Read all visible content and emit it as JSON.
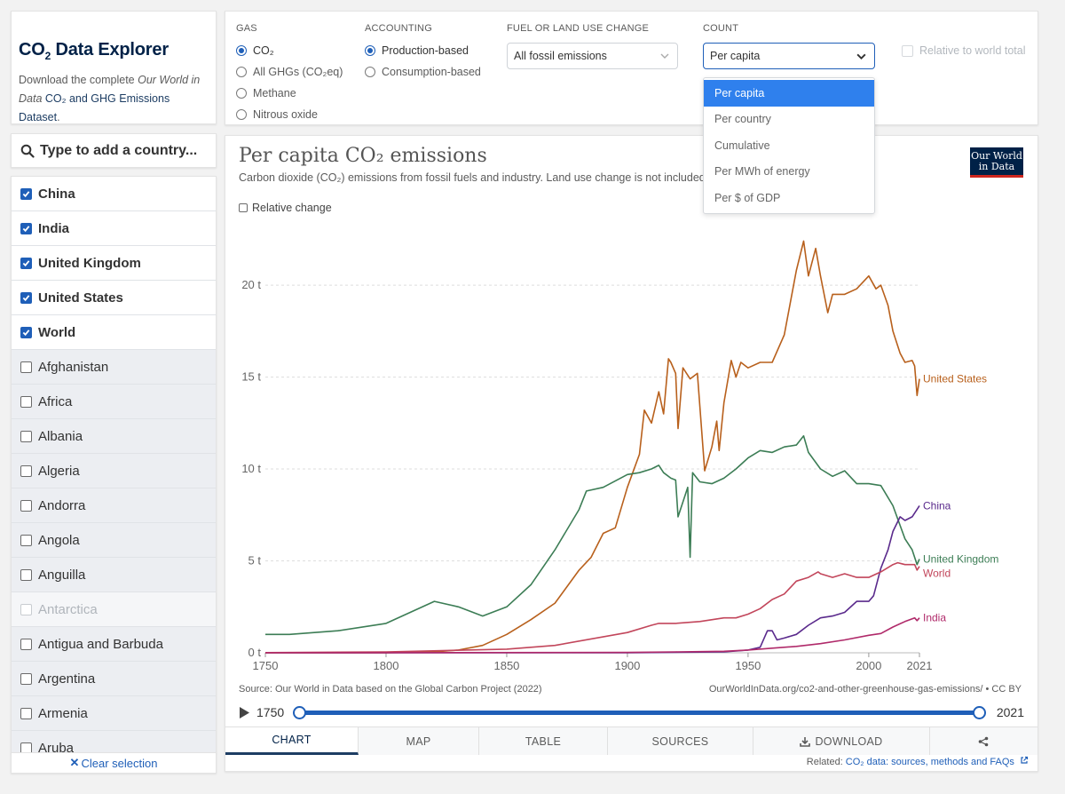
{
  "sidebar": {
    "title": "CO",
    "title_sub": "2",
    "title_rest": " Data Explorer",
    "desc_pre": "Download the complete ",
    "desc_italic": "Our World in Data",
    "desc_link": "CO₂ and GHG Emissions Dataset",
    "desc_end": ".",
    "search_placeholder": "Type to add a country...",
    "countries": [
      {
        "name": "China",
        "checked": true
      },
      {
        "name": "India",
        "checked": true
      },
      {
        "name": "United Kingdom",
        "checked": true
      },
      {
        "name": "United States",
        "checked": true
      },
      {
        "name": "World",
        "checked": true
      },
      {
        "name": "Afghanistan",
        "checked": false
      },
      {
        "name": "Africa",
        "checked": false
      },
      {
        "name": "Albania",
        "checked": false
      },
      {
        "name": "Algeria",
        "checked": false
      },
      {
        "name": "Andorra",
        "checked": false
      },
      {
        "name": "Angola",
        "checked": false
      },
      {
        "name": "Anguilla",
        "checked": false
      },
      {
        "name": "Antarctica",
        "checked": false,
        "disabled": true
      },
      {
        "name": "Antigua and Barbuda",
        "checked": false
      },
      {
        "name": "Argentina",
        "checked": false
      },
      {
        "name": "Armenia",
        "checked": false
      },
      {
        "name": "Aruba",
        "checked": false
      }
    ],
    "clear_label": "Clear selection"
  },
  "controls": {
    "gas_label": "GAS",
    "gas_options": [
      "CO₂",
      "All GHGs (CO₂eq)",
      "Methane",
      "Nitrous oxide"
    ],
    "gas_selected": 0,
    "accounting_label": "ACCOUNTING",
    "accounting_options": [
      "Production-based",
      "Consumption-based"
    ],
    "accounting_selected": 0,
    "fuel_label": "FUEL OR LAND USE CHANGE",
    "fuel_value": "All fossil emissions",
    "count_label": "COUNT",
    "count_value": "Per capita",
    "relative_total_label": "Relative to world total",
    "count_menu": [
      "Per capita",
      "Per country",
      "Cumulative",
      "Per MWh of energy",
      "Per $ of GDP"
    ],
    "count_menu_selected": 0
  },
  "chart": {
    "title": "Per capita CO₂ emissions",
    "subtitle": "Carbon dioxide (CO₂) emissions from fossil fuels and industry. Land use change is not included.",
    "relative_change_label": "Relative change",
    "logo_line1": "Our World",
    "logo_line2": "in Data",
    "source": "Source: Our World in Data based on the Global Carbon Project (2022)",
    "url": "OurWorldInData.org/co2-and-other-greenhouse-gas-emissions/ • CC BY",
    "timeline_start": "1750",
    "timeline_end": "2021",
    "tabs": [
      "CHART",
      "MAP",
      "TABLE",
      "SOURCES",
      "DOWNLOAD",
      ""
    ],
    "related_pre": "Related: ",
    "related_link": "CO₂ data: sources, methods and FAQs",
    "colors": {
      "United States": "#b8601c",
      "United Kingdom": "#3c7d55",
      "China": "#5a2a8c",
      "World": "#c2465b",
      "India": "#b02a6a"
    }
  },
  "chart_data": {
    "type": "line",
    "title": "Per capita CO₂ emissions",
    "ylabel": "",
    "xlabel": "",
    "unit": "t",
    "xlim": [
      1750,
      2021
    ],
    "ylim": [
      0,
      23
    ],
    "yticks": [
      0,
      5,
      10,
      15,
      20
    ],
    "ytick_labels": [
      "0 t",
      "5 t",
      "10 t",
      "15 t",
      "20 t"
    ],
    "xticks": [
      1750,
      1800,
      1850,
      1900,
      1950,
      2000,
      2021
    ],
    "grid": "horizontal dashed",
    "series": [
      {
        "name": "United States",
        "x": [
          1750,
          1800,
          1820,
          1830,
          1840,
          1850,
          1860,
          1870,
          1880,
          1885,
          1890,
          1895,
          1900,
          1905,
          1907,
          1910,
          1913,
          1915,
          1917,
          1918,
          1920,
          1921,
          1923,
          1926,
          1929,
          1932,
          1935,
          1937,
          1938,
          1940,
          1943,
          1945,
          1947,
          1950,
          1955,
          1960,
          1965,
          1970,
          1973,
          1975,
          1978,
          1980,
          1983,
          1985,
          1990,
          1995,
          2000,
          2003,
          2005,
          2008,
          2010,
          2013,
          2015,
          2018,
          2019,
          2020,
          2021
        ],
        "y": [
          0,
          0,
          0.05,
          0.15,
          0.4,
          1.0,
          1.8,
          2.7,
          4.5,
          5.2,
          6.5,
          6.8,
          9.0,
          10.8,
          13.2,
          12.5,
          14.2,
          13.0,
          16.0,
          15.8,
          15.2,
          12.2,
          15.5,
          14.9,
          15.2,
          9.9,
          11.2,
          12.6,
          11.0,
          13.6,
          15.9,
          15.0,
          15.8,
          15.5,
          15.8,
          15.8,
          17.3,
          20.8,
          22.4,
          20.5,
          22.0,
          20.5,
          18.5,
          19.5,
          19.5,
          19.8,
          20.5,
          19.8,
          20.0,
          18.9,
          17.5,
          16.3,
          15.8,
          15.9,
          15.6,
          14.0,
          14.9
        ]
      },
      {
        "name": "United Kingdom",
        "x": [
          1750,
          1760,
          1780,
          1800,
          1810,
          1820,
          1830,
          1840,
          1850,
          1860,
          1870,
          1880,
          1883,
          1890,
          1900,
          1905,
          1910,
          1913,
          1915,
          1918,
          1920,
          1921,
          1925,
          1926,
          1927,
          1930,
          1935,
          1940,
          1945,
          1950,
          1955,
          1960,
          1965,
          1970,
          1973,
          1975,
          1980,
          1985,
          1990,
          1995,
          2000,
          2005,
          2010,
          2015,
          2018,
          2020,
          2021
        ],
        "y": [
          1.0,
          1.0,
          1.2,
          1.6,
          2.2,
          2.8,
          2.5,
          2.0,
          2.5,
          3.7,
          5.6,
          7.8,
          8.8,
          9.0,
          9.7,
          9.8,
          10.0,
          10.2,
          9.8,
          9.5,
          9.4,
          7.4,
          9.0,
          5.2,
          9.8,
          9.3,
          9.2,
          9.5,
          10.0,
          10.6,
          11.0,
          10.9,
          11.2,
          11.3,
          11.8,
          10.9,
          10.0,
          9.6,
          9.9,
          9.2,
          9.2,
          9.1,
          8.0,
          6.2,
          5.6,
          4.8,
          5.1
        ]
      },
      {
        "name": "China",
        "x": [
          1750,
          1900,
          1940,
          1950,
          1955,
          1958,
          1960,
          1962,
          1965,
          1970,
          1975,
          1980,
          1985,
          1990,
          1995,
          2000,
          2002,
          2005,
          2008,
          2010,
          2013,
          2015,
          2018,
          2020,
          2021
        ],
        "y": [
          0,
          0,
          0.05,
          0.15,
          0.3,
          1.2,
          1.2,
          0.7,
          0.8,
          1.0,
          1.5,
          1.9,
          2.0,
          2.2,
          2.8,
          2.8,
          3.1,
          4.6,
          5.6,
          6.6,
          7.4,
          7.2,
          7.4,
          7.8,
          8.0
        ]
      },
      {
        "name": "World",
        "x": [
          1750,
          1800,
          1850,
          1870,
          1900,
          1910,
          1913,
          1920,
          1930,
          1940,
          1945,
          1950,
          1955,
          1960,
          1965,
          1970,
          1975,
          1979,
          1980,
          1985,
          1990,
          1995,
          2000,
          2005,
          2010,
          2012,
          2015,
          2019,
          2020,
          2021
        ],
        "y": [
          0.01,
          0.05,
          0.2,
          0.4,
          1.1,
          1.5,
          1.6,
          1.6,
          1.7,
          1.9,
          1.9,
          2.1,
          2.4,
          2.9,
          3.2,
          3.9,
          4.1,
          4.4,
          4.3,
          4.1,
          4.3,
          4.1,
          4.1,
          4.4,
          4.8,
          4.9,
          4.8,
          4.8,
          4.5,
          4.7
        ]
      },
      {
        "name": "India",
        "x": [
          1750,
          1900,
          1920,
          1940,
          1950,
          1960,
          1970,
          1980,
          1990,
          2000,
          2005,
          2010,
          2015,
          2019,
          2020,
          2021
        ],
        "y": [
          0,
          0.02,
          0.05,
          0.08,
          0.15,
          0.25,
          0.35,
          0.5,
          0.7,
          0.95,
          1.05,
          1.4,
          1.7,
          1.9,
          1.75,
          1.9
        ]
      }
    ]
  }
}
